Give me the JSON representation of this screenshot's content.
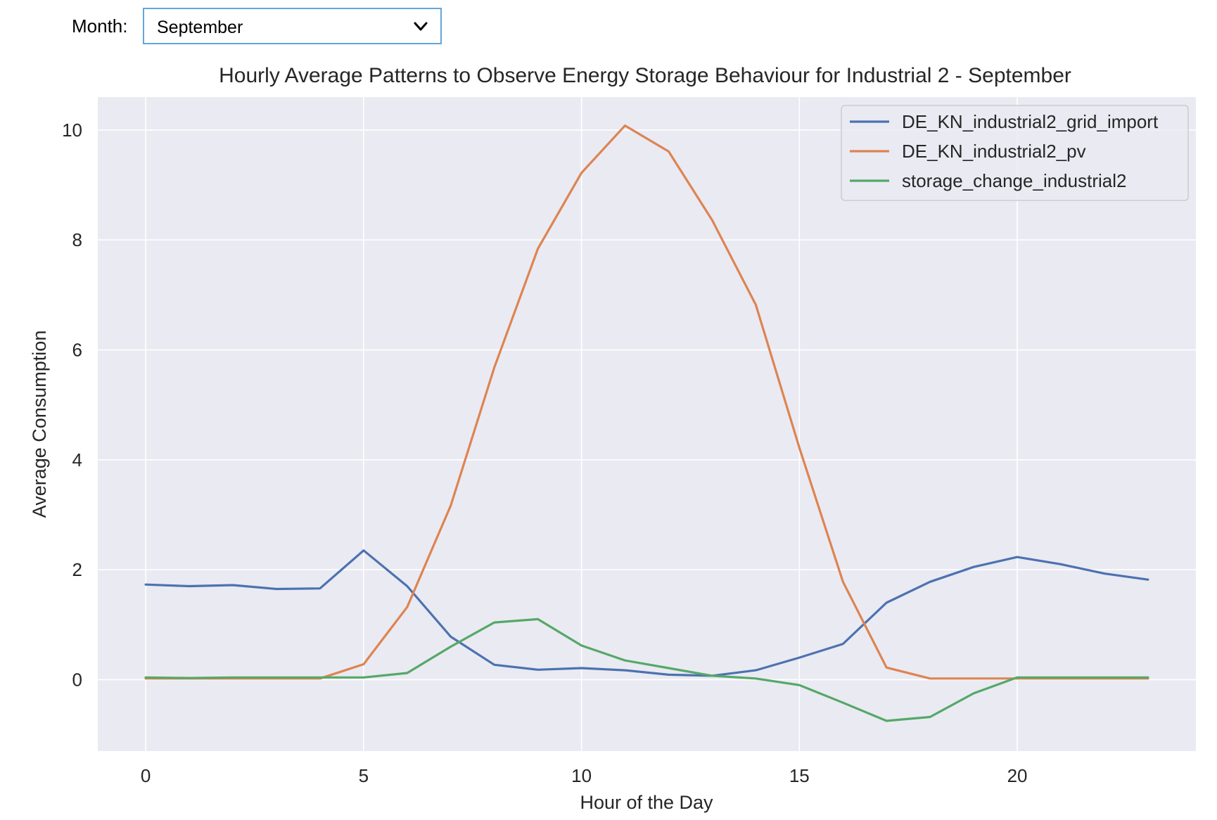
{
  "controls": {
    "month_label": "Month:",
    "month_selected": "September"
  },
  "colors": {
    "plot_background": "#eaeaf2",
    "grid": "#ffffff",
    "select_border": "#64a5dd",
    "text": "#262626"
  },
  "icons": {
    "select_arrow": "chevron-down-icon"
  },
  "chart_data": {
    "type": "line",
    "title": "Hourly Average Patterns to Observe Energy Storage Behaviour for Industrial 2 - September",
    "xlabel": "Hour of the Day",
    "ylabel": "Average Consumption",
    "xlim": [
      -1.1,
      24.1
    ],
    "ylim": [
      -1.3,
      10.6
    ],
    "xticks": [
      0,
      5,
      10,
      15,
      20
    ],
    "yticks": [
      0,
      2,
      4,
      6,
      8,
      10
    ],
    "grid": true,
    "legend_position": "top-right",
    "x": [
      0,
      1,
      2,
      3,
      4,
      5,
      6,
      7,
      8,
      9,
      10,
      11,
      12,
      13,
      14,
      15,
      16,
      17,
      18,
      19,
      20,
      21,
      22,
      23
    ],
    "series": [
      {
        "name": "DE_KN_industrial2_grid_import",
        "color": "#4c72b0",
        "values": [
          1.73,
          1.7,
          1.72,
          1.65,
          1.66,
          2.35,
          1.7,
          0.78,
          0.27,
          0.18,
          0.21,
          0.17,
          0.09,
          0.07,
          0.17,
          0.4,
          0.65,
          1.4,
          1.78,
          2.05,
          2.23,
          2.1,
          1.93,
          1.82
        ]
      },
      {
        "name": "DE_KN_industrial2_pv",
        "color": "#dd8452",
        "values": [
          0.02,
          0.02,
          0.02,
          0.02,
          0.02,
          0.28,
          1.32,
          3.17,
          5.68,
          7.84,
          9.22,
          10.08,
          9.61,
          8.36,
          6.82,
          4.22,
          1.78,
          0.22,
          0.02,
          0.02,
          0.02,
          0.02,
          0.02,
          0.02
        ]
      },
      {
        "name": "storage_change_industrial2",
        "color": "#55a868",
        "values": [
          0.04,
          0.03,
          0.04,
          0.04,
          0.04,
          0.04,
          0.12,
          0.6,
          1.04,
          1.1,
          0.62,
          0.35,
          0.21,
          0.07,
          0.02,
          -0.1,
          -0.42,
          -0.75,
          -0.68,
          -0.25,
          0.04,
          0.04,
          0.04,
          0.04
        ]
      }
    ]
  }
}
